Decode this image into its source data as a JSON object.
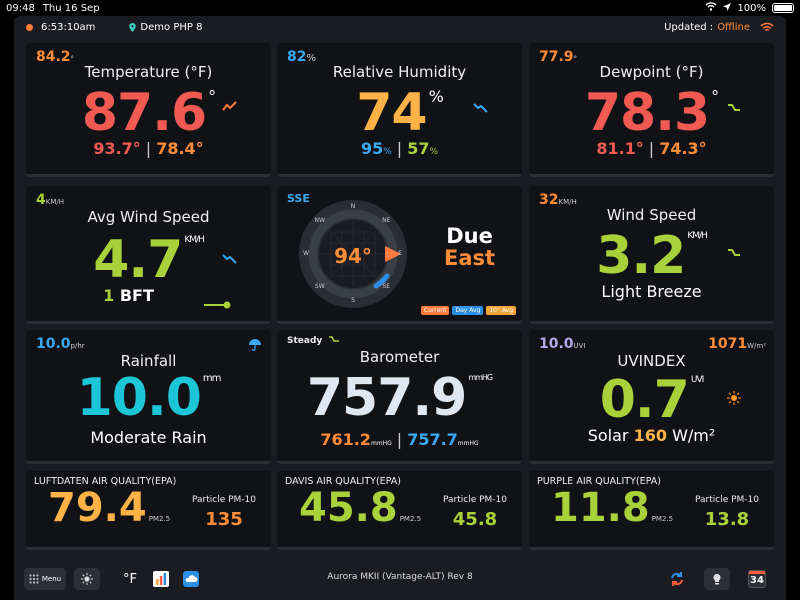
{
  "status": {
    "time": "09:48",
    "date": "Thu 16 Sep",
    "battery": "100%"
  },
  "info": {
    "clock": "6:53:10am",
    "location": "Demo PHP 8",
    "updated_label": "Updated :",
    "updated_value": "Offline"
  },
  "temperature": {
    "corner": "84.2",
    "corner_unit": "°",
    "title": "Temperature (°F)",
    "value": "87.6",
    "unit": "°",
    "high": "93.7",
    "high_unit": "°",
    "low": "78.4",
    "low_unit": "°"
  },
  "humidity": {
    "corner": "82",
    "corner_unit": "%",
    "title": "Relative Humidity",
    "value": "74",
    "unit": "%",
    "high": "95",
    "high_unit": "%",
    "low": "57",
    "low_unit": "%"
  },
  "dewpoint": {
    "corner": "77.9",
    "corner_unit": "°",
    "title": "Dewpoint (°F)",
    "value": "78.3",
    "unit": "°",
    "high": "81.1",
    "high_unit": "°",
    "low": "74.3",
    "low_unit": "°"
  },
  "avg_wind": {
    "corner": "4",
    "corner_unit": "KM/H",
    "title": "Avg Wind Speed",
    "value": "4.7",
    "unit": "KM/H",
    "bft_value": "1",
    "bft_label": "BFT"
  },
  "compass": {
    "corner": "SSE",
    "heading": "94°",
    "line1": "Due",
    "line2": "East",
    "points": [
      "N",
      "NE",
      "E",
      "SE",
      "S",
      "SW",
      "W",
      "NW"
    ],
    "legend": [
      {
        "label": "Current",
        "color": "#ff7a3d"
      },
      {
        "label": "Day Avg",
        "color": "#2d8ee6"
      },
      {
        "label": "10° Avg",
        "color": "#f3a53a"
      }
    ]
  },
  "wind_speed": {
    "corner": "32",
    "corner_unit": "KM/H",
    "title": "Wind Speed",
    "value": "3.2",
    "unit": "KM/H",
    "desc": "Light Breeze"
  },
  "rain": {
    "corner": "10.0",
    "corner_unit": "p/hr",
    "title": "Rainfall",
    "value": "10.0",
    "unit": "mm",
    "desc": "Moderate Rain"
  },
  "barometer": {
    "corner": "Steady",
    "title": "Barometer",
    "value": "757.9",
    "unit": "mmHG",
    "high": "761.2",
    "high_unit": "mmHG",
    "low": "757.7",
    "low_unit": "mmHG"
  },
  "uv": {
    "corner": "10.0",
    "corner_unit": "UVI",
    "solar_top": "1071",
    "solar_top_unit": "W/m²",
    "title": "UVINDEX",
    "value": "0.7",
    "unit": "UVI",
    "solar_label": "Solar",
    "solar_value": "160",
    "solar_unit": "W/m²"
  },
  "aq": [
    {
      "title": "LUFTDATEN AIR QUALITY(EPA)",
      "value": "79.4",
      "unit": "PM2.5",
      "pm_label": "Particle PM-10",
      "pm_value": "135",
      "color": "#ffb347",
      "pm_color": "#ff8c38"
    },
    {
      "title": "DAVIS AIR QUALITY(EPA)",
      "value": "45.8",
      "unit": "PM2.5",
      "pm_label": "Particle PM-10",
      "pm_value": "45.8",
      "color": "#a8d13a",
      "pm_color": "#a8d13a"
    },
    {
      "title": "PURPLE AIR QUALITY(EPA)",
      "value": "11.8",
      "unit": "PM2.5",
      "pm_label": "Particle PM-10",
      "pm_value": "13.8",
      "color": "#a8d13a",
      "pm_color": "#a8d13a"
    }
  ],
  "bottom": {
    "menu": "Menu",
    "unit": "°F",
    "station": "Aurora MKII (Vantage-ALT) Rev 8",
    "calendar": "34"
  }
}
